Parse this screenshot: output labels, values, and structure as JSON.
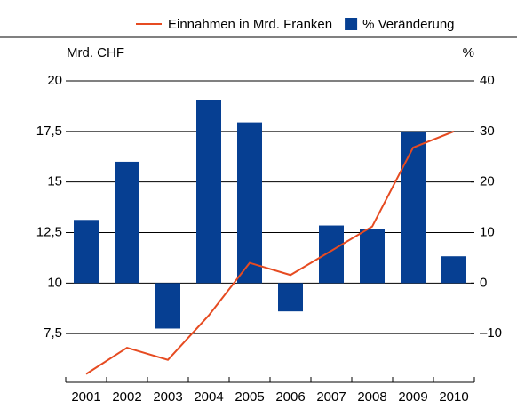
{
  "chart_data": {
    "type": "bar",
    "categories": [
      "2001",
      "2002",
      "2003",
      "2004",
      "2005",
      "2006",
      "2007",
      "2008",
      "2009",
      "2010"
    ],
    "ylabel": "Mrd. CHF",
    "y2label": "%",
    "ylim": [
      5,
      20
    ],
    "yticks": [
      {
        "value": 7.5,
        "label": "7,5"
      },
      10,
      {
        "value": 12.5,
        "label": "12,5"
      },
      15,
      {
        "value": 17.5,
        "label": "17,5"
      },
      20
    ],
    "y2lim": [
      -20,
      40
    ],
    "y2ticks": [
      {
        "value": -10,
        "label": "–10"
      },
      0,
      10,
      20,
      30,
      40
    ],
    "grid": true,
    "legend": "top",
    "series": [
      {
        "name": "Einnahmen in Mrd. Franken",
        "type": "line",
        "color": "#e64b21",
        "axis": "y",
        "values": [
          5.5,
          6.8,
          6.2,
          8.4,
          11.0,
          10.4,
          11.6,
          12.8,
          16.7,
          17.5
        ]
      },
      {
        "name": "% Veränderung",
        "type": "bar",
        "color": "#063f92",
        "axis": "y2",
        "values": [
          12.5,
          24,
          -9,
          36.3,
          31.8,
          -5.6,
          11.4,
          10.7,
          30,
          5.3
        ]
      }
    ]
  }
}
